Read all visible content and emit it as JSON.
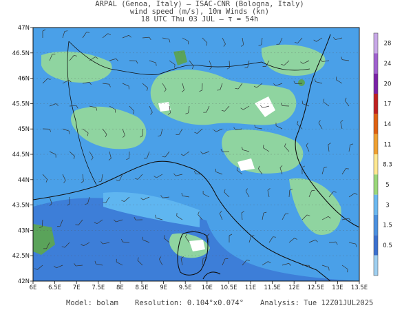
{
  "header": {
    "line1": "ARPAL (Genoa, Italy)  —  ISAC-CNR (Bologna, Italy)",
    "line2": "wind speed (m/s), 10m Winds (kn)",
    "line3": "18 UTC Thu 03 JUL  —  τ = 54h"
  },
  "map": {
    "lat_labels": [
      "47N",
      "46.5N",
      "46N",
      "45.5N",
      "45N",
      "44.5N",
      "44N",
      "43.5N",
      "43N",
      "42.5N",
      "42N"
    ],
    "lon_labels": [
      "6E",
      "6.5E",
      "7E",
      "7.5E",
      "8E",
      "8.5E",
      "9E",
      "9.5E",
      "10E",
      "10.5E",
      "11E",
      "11.5E",
      "12E",
      "12.5E",
      "13E",
      "13.5E"
    ],
    "colors": {
      "sea_blue": "#3d7ed8",
      "mid_blue": "#4aa0e8",
      "light_blue": "#5fb6f0",
      "green": "#8fd4a0",
      "dark_green": "#5aa35a",
      "white": "#ffffff",
      "border": "#111111"
    }
  },
  "colorbar": {
    "levels": [
      "28",
      "24",
      "20",
      "17",
      "14",
      "11",
      "8.3",
      "5",
      "3",
      "1.5",
      "0.5"
    ],
    "colors": [
      "#c8a8e8",
      "#a060d0",
      "#7a20a8",
      "#c02020",
      "#e06010",
      "#f0a030",
      "#ffe890",
      "#9ad878",
      "#6ab8f0",
      "#4a90e0",
      "#3a70d0",
      "#9ecff0"
    ]
  },
  "footer": {
    "model": "Model: bolam",
    "resolution": "Resolution: 0.104°x0.074°",
    "analysis": "Analysis: Tue 12Z01JUL2025"
  }
}
